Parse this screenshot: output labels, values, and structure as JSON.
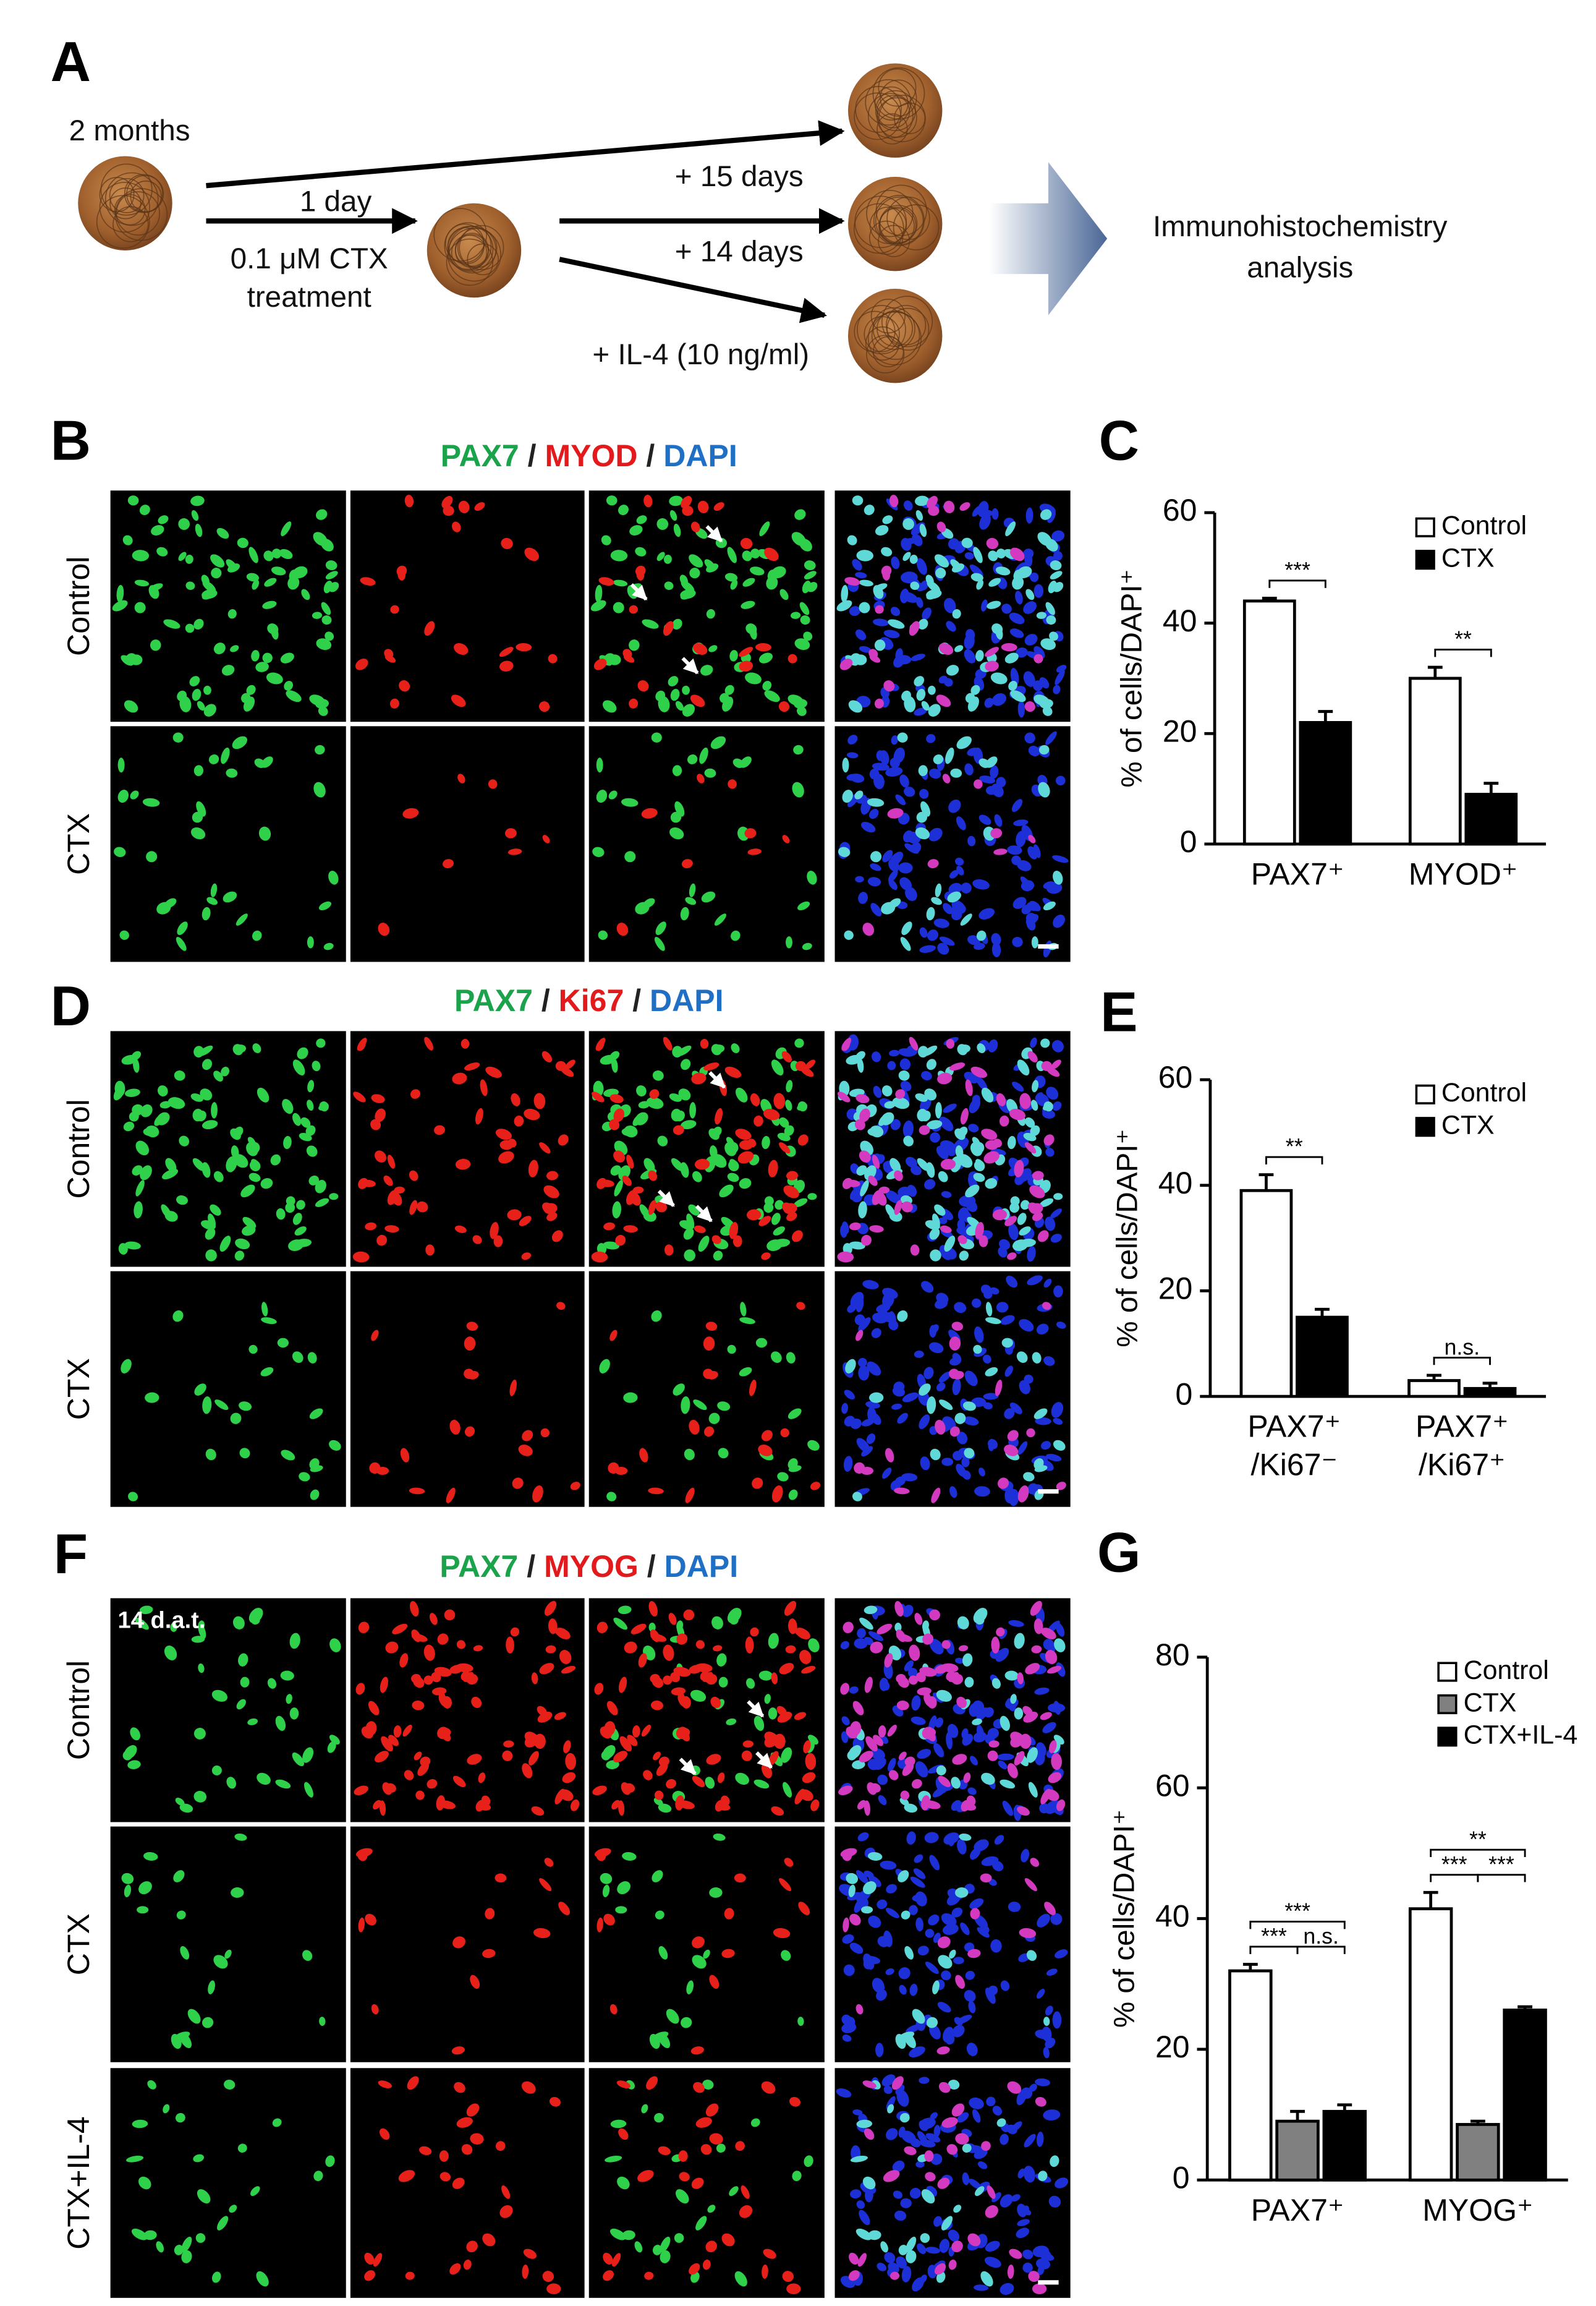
{
  "panel_labels": [
    "A",
    "B",
    "C",
    "D",
    "E",
    "F",
    "G"
  ],
  "schematic": {
    "start": "2 months",
    "step": "1 day",
    "treatment": [
      "0.1 μM CTX",
      "treatment"
    ],
    "branches": [
      "+ 15 days",
      "+ 14 days",
      "+ IL-4 (10 ng/ml)"
    ],
    "result": [
      "Immunohistochemistry",
      "analysis"
    ]
  },
  "micrographs": [
    {
      "title": [
        "PAX7",
        " / ",
        "MYOD",
        " / ",
        "DAPI"
      ],
      "title_colors": [
        "#1aa34a",
        "#222222",
        "#e31a1c",
        "#222222",
        "#1f6fc5"
      ],
      "rows": [
        "Control",
        "CTX"
      ]
    },
    {
      "title": [
        "PAX7",
        " / ",
        "Ki67",
        " / ",
        "DAPI"
      ],
      "title_colors": [
        "#1aa34a",
        "#222222",
        "#e31a1c",
        "#222222",
        "#1f6fc5"
      ],
      "rows": [
        "Control",
        "CTX"
      ]
    },
    {
      "title": [
        "PAX7",
        " / ",
        "MYOG",
        " / ",
        "DAPI"
      ],
      "title_colors": [
        "#1aa34a",
        "#222222",
        "#e31a1c",
        "#222222",
        "#1f6fc5"
      ],
      "rows": [
        "Control",
        "CTX",
        "CTX+IL-4"
      ],
      "annotation": "14 d.a.t."
    }
  ],
  "chart_data": [
    {
      "type": "bar",
      "ylabel": "% of cells/DAPI⁺",
      "categories": [
        "PAX7⁺",
        "MYOD⁺"
      ],
      "series": [
        {
          "name": "Control",
          "color": "#ffffff",
          "values": [
            44,
            30
          ],
          "errors": [
            0.5,
            2
          ]
        },
        {
          "name": "CTX",
          "color": "#000000",
          "values": [
            22,
            9
          ],
          "errors": [
            2,
            2
          ]
        }
      ],
      "ylim": [
        0,
        60
      ],
      "yticks": [
        0,
        20,
        40,
        60
      ],
      "legend": "upper right",
      "significance": [
        {
          "group": 0,
          "from": 0,
          "to": 1,
          "label": "***"
        },
        {
          "group": 1,
          "from": 0,
          "to": 1,
          "label": "**"
        }
      ]
    },
    {
      "type": "bar",
      "ylabel": "% of cells/DAPI⁺",
      "categories": [
        [
          "PAX7⁺",
          "/Ki67⁻"
        ],
        [
          "PAX7⁺",
          "/Ki67⁺"
        ]
      ],
      "series": [
        {
          "name": "Control",
          "color": "#ffffff",
          "values": [
            39,
            3
          ],
          "errors": [
            3,
            1
          ]
        },
        {
          "name": "CTX",
          "color": "#000000",
          "values": [
            15,
            1.5
          ],
          "errors": [
            1.5,
            1
          ]
        }
      ],
      "ylim": [
        0,
        60
      ],
      "yticks": [
        0,
        20,
        40,
        60
      ],
      "legend": "upper right",
      "significance": [
        {
          "group": 0,
          "from": 0,
          "to": 1,
          "label": "**"
        },
        {
          "group": 1,
          "from": 0,
          "to": 1,
          "label": "n.s."
        }
      ]
    },
    {
      "type": "bar",
      "ylabel": "% of cells/DAPI⁺",
      "categories": [
        "PAX7⁺",
        "MYOG⁺"
      ],
      "series": [
        {
          "name": "Control",
          "color": "#ffffff",
          "values": [
            32,
            41.5
          ],
          "errors": [
            1,
            2.5
          ]
        },
        {
          "name": "CTX",
          "color": "#808080",
          "values": [
            9,
            8.5
          ],
          "errors": [
            1.5,
            0.5
          ]
        },
        {
          "name": "CTX+IL-4",
          "color": "#000000",
          "values": [
            10.5,
            26
          ],
          "errors": [
            1,
            0.5
          ]
        }
      ],
      "ylim": [
        0,
        80
      ],
      "yticks": [
        0,
        20,
        40,
        60,
        80
      ],
      "legend": "upper right",
      "significance": [
        {
          "group": 0,
          "from": 0,
          "to": 1,
          "label": "***"
        },
        {
          "group": 0,
          "from": 1,
          "to": 2,
          "label": "n.s."
        },
        {
          "group": 0,
          "from": 0,
          "to": 2,
          "label": "***"
        },
        {
          "group": 1,
          "from": 0,
          "to": 1,
          "label": "***"
        },
        {
          "group": 1,
          "from": 1,
          "to": 2,
          "label": "***"
        },
        {
          "group": 1,
          "from": 0,
          "to": 2,
          "label": "**"
        }
      ]
    }
  ]
}
